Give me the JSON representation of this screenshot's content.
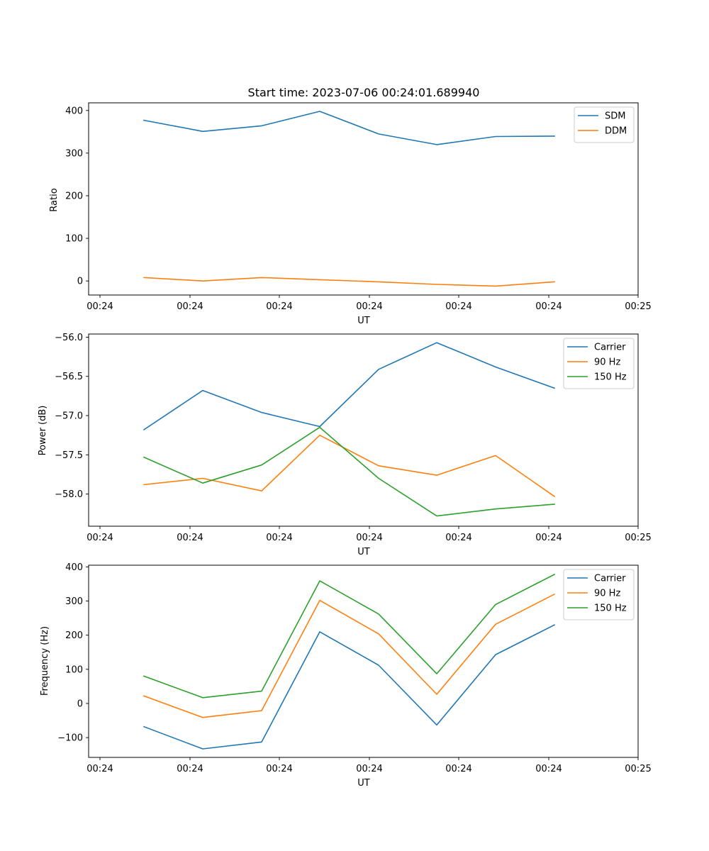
{
  "chart_data": [
    {
      "type": "line",
      "title": "Start time: 2023-07-06 00:24:01.689940",
      "xlabel": "UT",
      "ylabel": "Ratio",
      "x_tick_labels": [
        "00:24",
        "00:24",
        "00:24",
        "00:24",
        "00:24",
        "00:24",
        "00:24",
        "00:25"
      ],
      "y_ticks": [
        0,
        100,
        200,
        300,
        400
      ],
      "ylim": [
        -33,
        418
      ],
      "legend_position": "top-right",
      "series": [
        {
          "name": "SDM",
          "color": "#1f77b4",
          "values": [
            377,
            351,
            364,
            398,
            345,
            320,
            339,
            340
          ]
        },
        {
          "name": "DDM",
          "color": "#ff7f0e",
          "values": [
            8,
            0,
            8,
            3,
            -2,
            -8,
            -12,
            -2
          ]
        }
      ]
    },
    {
      "type": "line",
      "title": "",
      "xlabel": "UT",
      "ylabel": "Power (dB)",
      "x_tick_labels": [
        "00:24",
        "00:24",
        "00:24",
        "00:24",
        "00:24",
        "00:24",
        "00:24",
        "00:25"
      ],
      "y_ticks": [
        -58.0,
        -57.5,
        -57.0,
        -56.5,
        -56.0
      ],
      "y_tick_labels": [
        "−58.0",
        "−57.5",
        "−57.0",
        "−56.5",
        "−56.0"
      ],
      "ylim": [
        -58.41,
        -55.96
      ],
      "legend_position": "top-right",
      "series": [
        {
          "name": "Carrier",
          "color": "#1f77b4",
          "values": [
            -57.18,
            -56.68,
            -56.96,
            -57.14,
            -56.41,
            -56.07,
            -56.38,
            -56.65
          ]
        },
        {
          "name": "90 Hz",
          "color": "#ff7f0e",
          "values": [
            -57.88,
            -57.8,
            -57.96,
            -57.25,
            -57.64,
            -57.76,
            -57.51,
            -58.03
          ]
        },
        {
          "name": "150 Hz",
          "color": "#2ca02c",
          "values": [
            -57.53,
            -57.86,
            -57.63,
            -57.15,
            -57.8,
            -58.28,
            -58.19,
            -58.13
          ]
        }
      ]
    },
    {
      "type": "line",
      "title": "",
      "xlabel": "UT",
      "ylabel": "Frequency (Hz)",
      "x_tick_labels": [
        "00:24",
        "00:24",
        "00:24",
        "00:24",
        "00:24",
        "00:24",
        "00:24",
        "00:25"
      ],
      "y_ticks": [
        -100,
        0,
        100,
        200,
        300,
        400
      ],
      "y_tick_labels": [
        "−100",
        "0",
        "100",
        "200",
        "300",
        "400"
      ],
      "ylim": [
        -158,
        405
      ],
      "legend_position": "top-right",
      "series": [
        {
          "name": "Carrier",
          "color": "#1f77b4",
          "values": [
            -68,
            -133,
            -113,
            210,
            112,
            -63,
            143,
            230
          ]
        },
        {
          "name": "90 Hz",
          "color": "#ff7f0e",
          "values": [
            22,
            -41,
            -21,
            302,
            204,
            27,
            232,
            320
          ]
        },
        {
          "name": "150 Hz",
          "color": "#2ca02c",
          "values": [
            80,
            17,
            36,
            359,
            262,
            87,
            290,
            378
          ]
        }
      ]
    }
  ]
}
